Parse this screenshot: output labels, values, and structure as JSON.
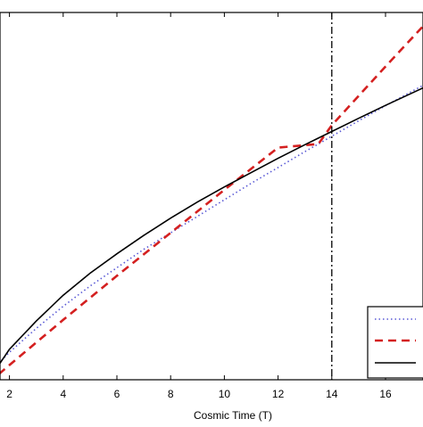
{
  "chart_data": {
    "type": "line",
    "title": "",
    "xlabel": "Cosmic Time (T)",
    "ylabel": "",
    "xlim": [
      1.6,
      18.15
    ],
    "ylim": [
      0,
      1
    ],
    "x_ticks": [
      2,
      4,
      6,
      8,
      10,
      12,
      14,
      16
    ],
    "y_scale_ticks_visible": false,
    "grid": false,
    "legend_position": "bottom-right",
    "vertical_reference_line": {
      "x": 14,
      "style": "dash-dot",
      "color": "#000000"
    },
    "series": [
      {
        "style": "dotted",
        "color": "#5a5ad6",
        "points": [
          [
            1.6,
            0.045
          ],
          [
            2,
            0.075
          ],
          [
            3,
            0.14
          ],
          [
            4,
            0.2
          ],
          [
            5,
            0.255
          ],
          [
            6,
            0.305
          ],
          [
            7,
            0.355
          ],
          [
            8,
            0.4
          ],
          [
            9,
            0.445
          ],
          [
            10,
            0.49
          ],
          [
            11,
            0.535
          ],
          [
            12,
            0.578
          ],
          [
            13,
            0.621
          ],
          [
            13.5,
            0.642
          ],
          [
            14,
            0.663
          ],
          [
            15,
            0.705
          ],
          [
            16,
            0.746
          ],
          [
            17,
            0.786
          ],
          [
            18,
            0.825
          ],
          [
            18.15,
            0.831
          ]
        ]
      },
      {
        "style": "dashed",
        "color": "#d42020",
        "points": [
          [
            1.6,
            0.015
          ],
          [
            2,
            0.04
          ],
          [
            4,
            0.163
          ],
          [
            6,
            0.283
          ],
          [
            8,
            0.4
          ],
          [
            10,
            0.517
          ],
          [
            12,
            0.632
          ],
          [
            13.5,
            0.642
          ],
          [
            14,
            0.693
          ],
          [
            16,
            0.853
          ],
          [
            18,
            1.01
          ],
          [
            18.15,
            1.022
          ]
        ]
      },
      {
        "style": "solid",
        "color": "#000000",
        "points": [
          [
            1.6,
            0.04
          ],
          [
            2,
            0.083
          ],
          [
            3,
            0.16
          ],
          [
            4,
            0.23
          ],
          [
            5,
            0.29
          ],
          [
            6,
            0.343
          ],
          [
            7,
            0.393
          ],
          [
            8,
            0.44
          ],
          [
            9,
            0.484
          ],
          [
            10,
            0.525
          ],
          [
            11,
            0.564
          ],
          [
            12,
            0.603
          ],
          [
            13,
            0.64
          ],
          [
            13.5,
            0.658
          ],
          [
            14,
            0.676
          ],
          [
            15,
            0.712
          ],
          [
            16,
            0.747
          ],
          [
            17,
            0.781
          ],
          [
            18,
            0.815
          ],
          [
            18.15,
            0.82
          ]
        ]
      }
    ]
  }
}
